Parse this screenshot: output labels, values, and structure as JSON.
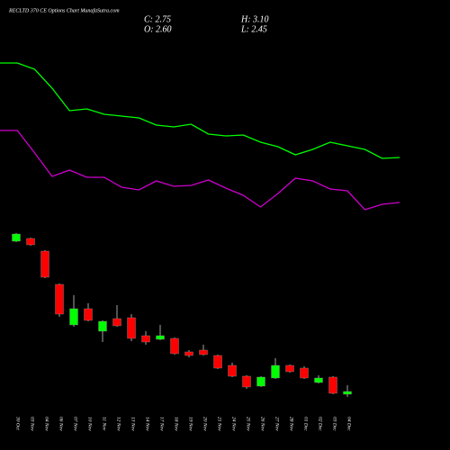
{
  "chart_data": {
    "type": "candlestick",
    "title": "RECLTD 370 CE Options  Chart MunafaSutra.com",
    "close_text": "C: 2.75",
    "high_text": "H: 3.10",
    "open_text": "O: 2.60",
    "low_text": "L: 2.45",
    "categories": [
      "30 Oct",
      "03 Nov",
      "04 Nov",
      "06 Nov",
      "07 Nov",
      "10 Nov",
      "11 Nov",
      "12 Nov",
      "13 Nov",
      "14 Nov",
      "17 Nov",
      "18 Nov",
      "19 Nov",
      "20 Nov",
      "21 Nov",
      "24 Nov",
      "25 Nov",
      "26 Nov",
      "27 Nov",
      "28 Nov",
      "01 Dec",
      "02 Dec",
      "03 Dec",
      "04 Dec"
    ],
    "open": [
      11.1,
      11.25,
      10.55,
      8.7,
      6.45,
      7.35,
      6.1,
      6.8,
      6.85,
      5.85,
      5.65,
      5.7,
      4.95,
      5.05,
      4.75,
      4.2,
      3.6,
      3.05,
      3.5,
      4.2,
      4.05,
      3.25,
      3.55,
      2.6
    ],
    "close": [
      11.5,
      10.9,
      9.1,
      7.05,
      7.35,
      6.7,
      6.65,
      6.4,
      5.7,
      5.5,
      5.85,
      4.85,
      4.75,
      4.8,
      4.05,
      3.6,
      3.0,
      3.55,
      4.2,
      3.85,
      3.5,
      3.5,
      2.65,
      2.75
    ],
    "high": [
      11.55,
      11.3,
      10.6,
      8.75,
      8.1,
      7.65,
      6.7,
      7.55,
      7.05,
      6.1,
      6.45,
      5.75,
      5.05,
      5.35,
      4.8,
      4.35,
      3.65,
      3.6,
      4.6,
      4.25,
      4.15,
      3.65,
      3.6,
      3.1
    ],
    "low": [
      11.05,
      10.85,
      9.05,
      6.9,
      6.35,
      6.65,
      5.5,
      6.35,
      5.55,
      5.35,
      5.6,
      4.8,
      4.65,
      4.75,
      4.0,
      3.55,
      2.9,
      3.0,
      3.45,
      3.8,
      3.45,
      3.2,
      2.6,
      2.45
    ],
    "up_color": "#00ff00",
    "down_color": "#ff0000",
    "series": [
      {
        "color": "#00ff00",
        "values": [
          21,
          21,
          20.65,
          19.6,
          18.35,
          18.45,
          18.15,
          18.05,
          17.95,
          17.55,
          17.45,
          17.6,
          17.05,
          16.95,
          17.0,
          16.6,
          16.35,
          15.9,
          16.2,
          16.6,
          16.4,
          16.2,
          15.7,
          15.75
        ]
      },
      {
        "color": "#cc00cc",
        "values": [
          17.25,
          17.25,
          16,
          14.7,
          15.05,
          14.65,
          14.65,
          14.1,
          13.95,
          14.45,
          14.15,
          14.2,
          14.5,
          14.05,
          13.65,
          13.0,
          13.75,
          14.6,
          14.45,
          14.0,
          13.9,
          12.85,
          13.15,
          13.25
        ]
      }
    ],
    "ylim": [
      1.5,
      24.5
    ]
  }
}
